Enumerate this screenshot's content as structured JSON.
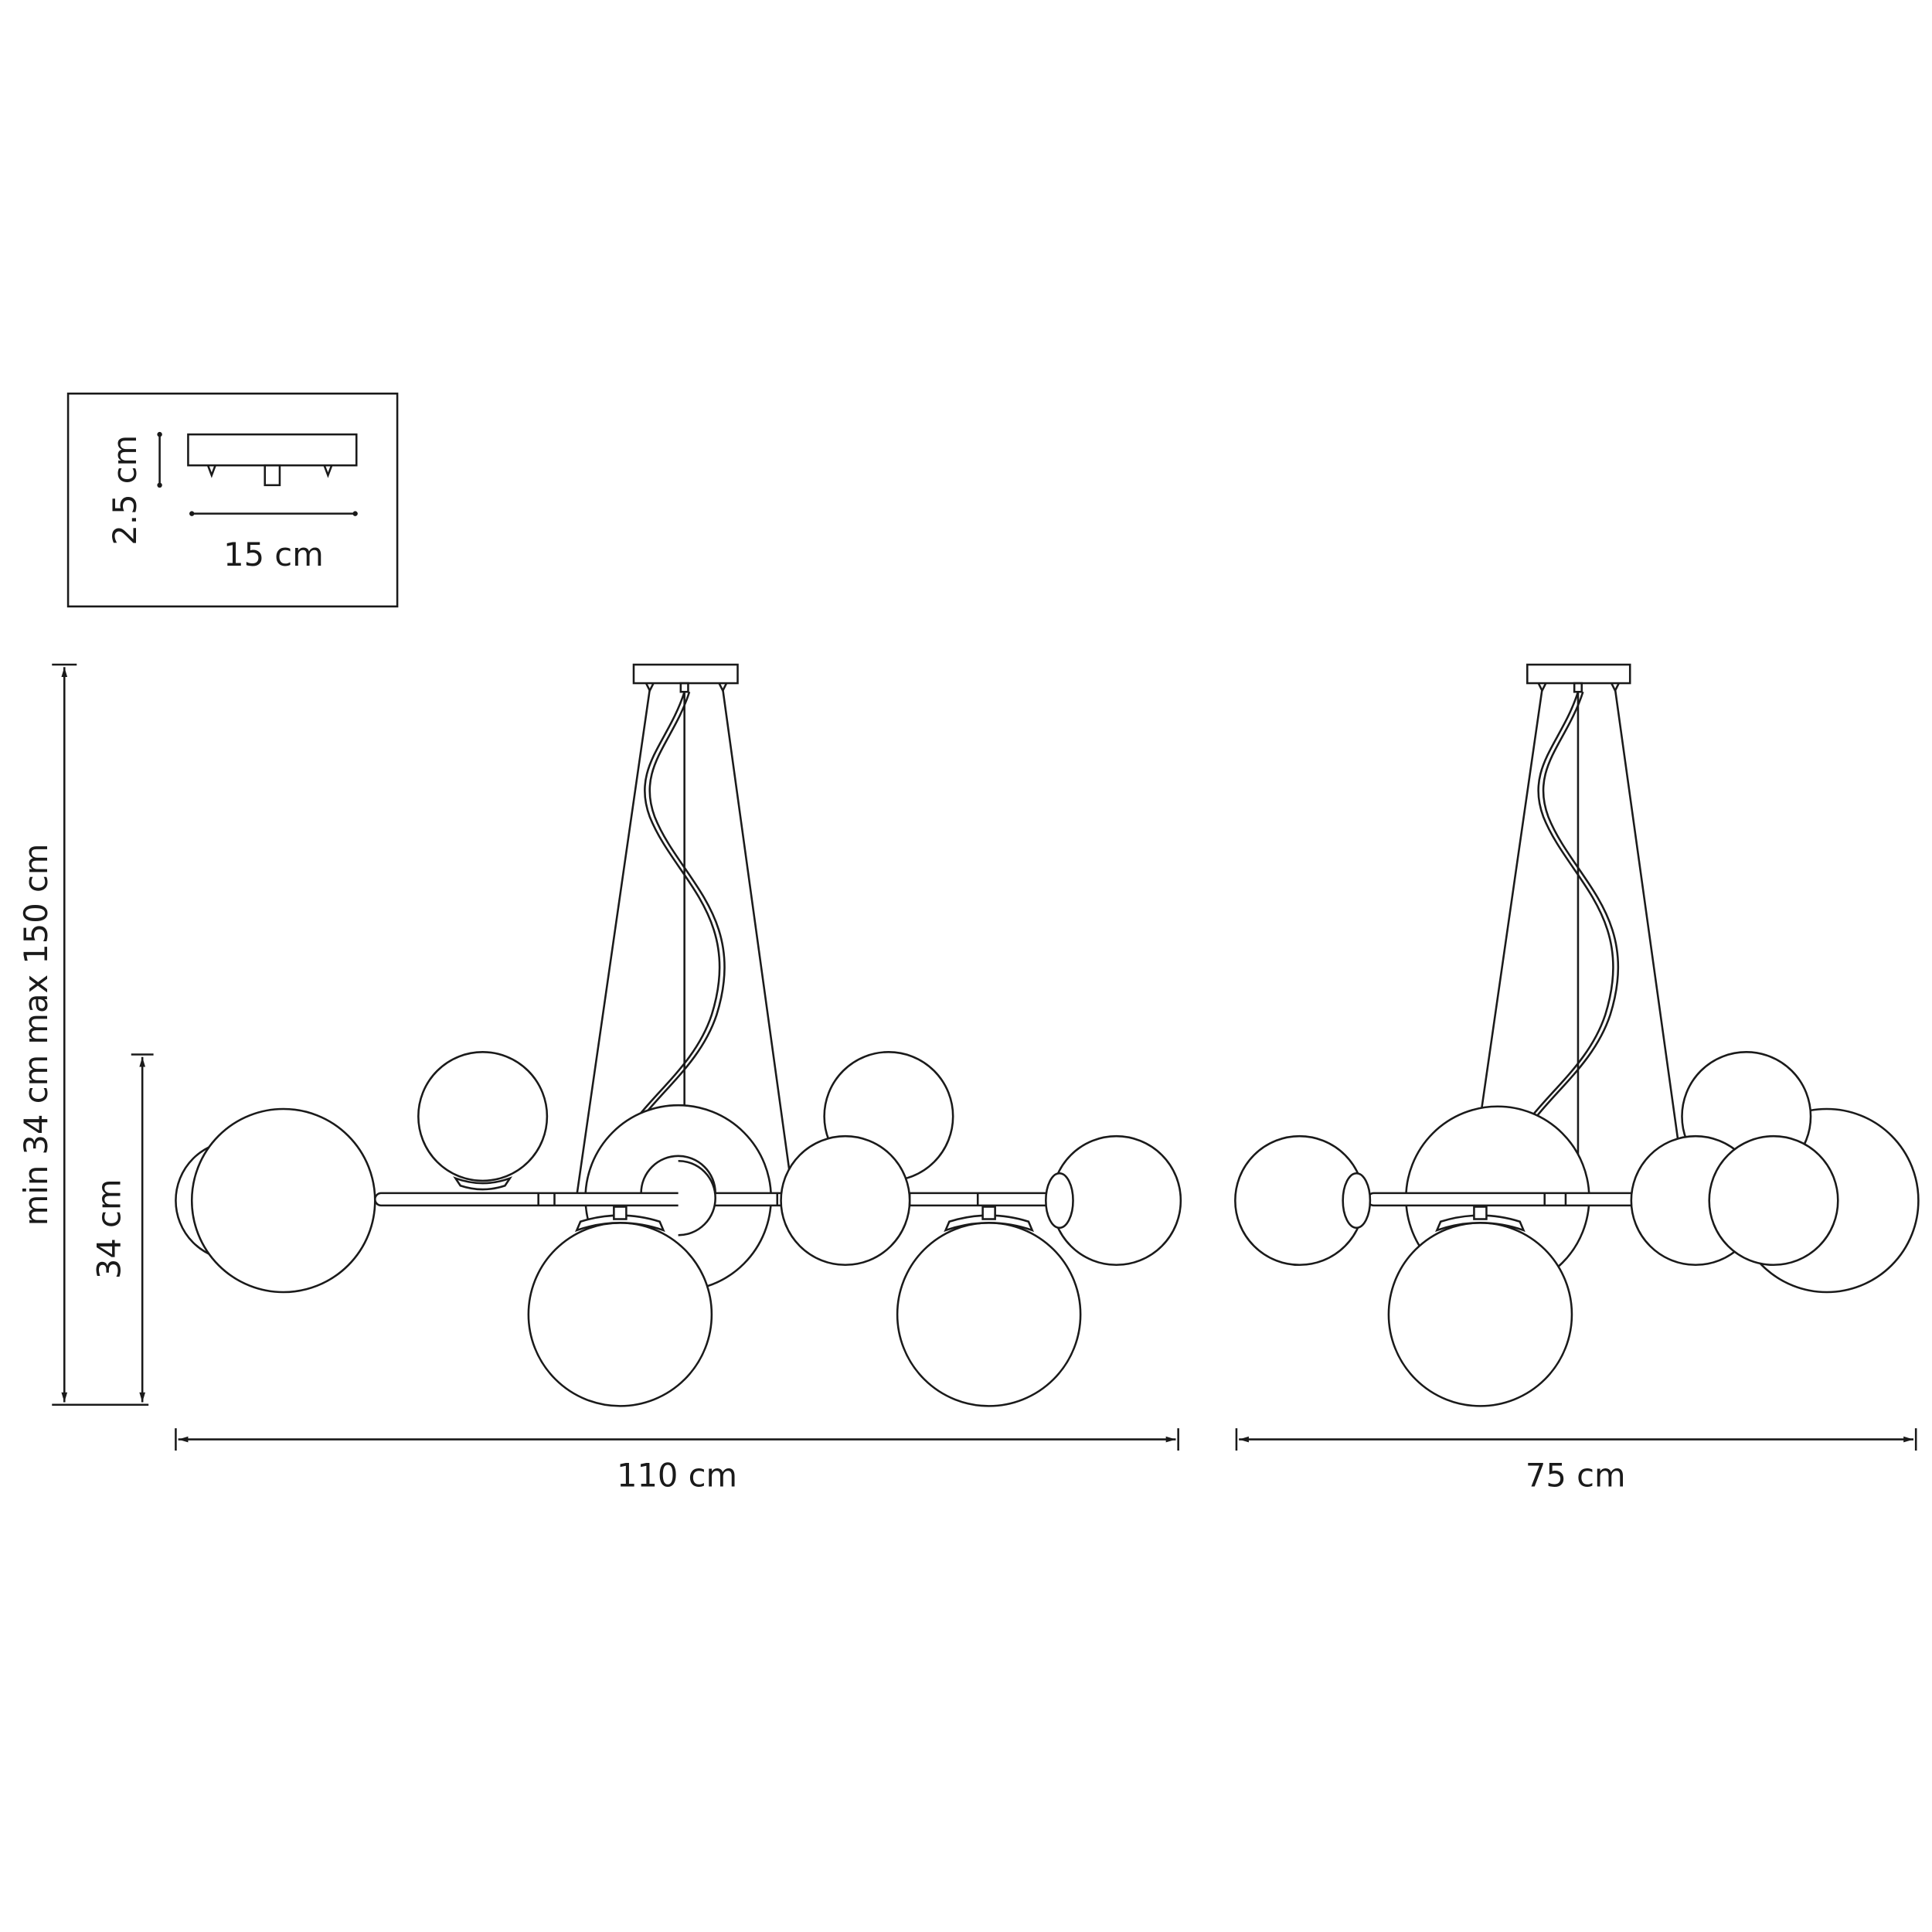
{
  "inset": {
    "height_label": "2.5 cm",
    "width_label": "15 cm"
  },
  "dimensions": {
    "total_height_label": "min 34 cm max 150 cm",
    "body_height_label": "34 cm",
    "front_width_label": "110 cm",
    "side_width_label": "75 cm"
  },
  "colors": {
    "line": "#1a1a1a",
    "background": "#ffffff"
  }
}
